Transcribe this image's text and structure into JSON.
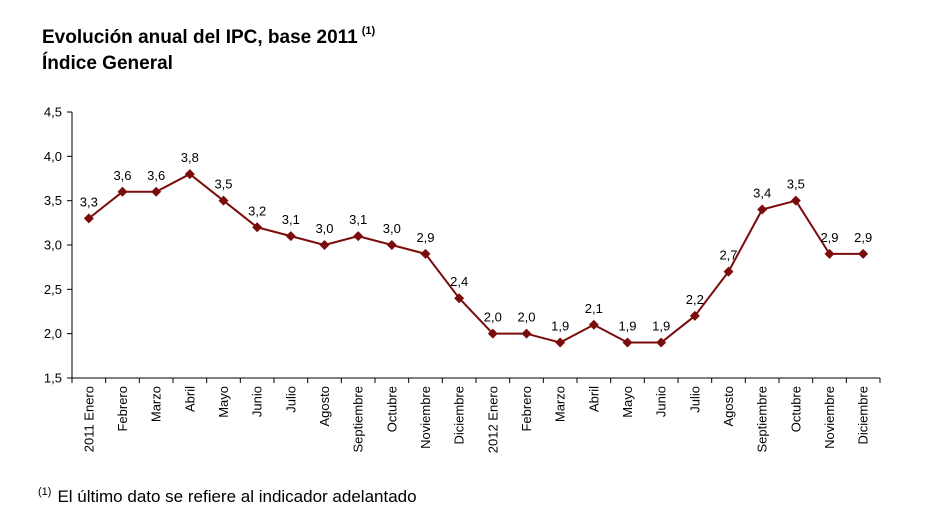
{
  "chart_data": {
    "type": "line",
    "title": "Evolución anual del IPC, base 2011",
    "title_superscript": "(1)",
    "subtitle": "Índice General",
    "xlabel": "",
    "ylabel": "",
    "ylim": [
      1.5,
      4.5
    ],
    "yticks": [
      "1,5",
      "2,0",
      "2,5",
      "3,0",
      "3,5",
      "4,0",
      "4,5"
    ],
    "categories": [
      "2011 Enero",
      "Febrero",
      "Marzo",
      "Abril",
      "Mayo",
      "Junio",
      "Julio",
      "Agosto",
      "Septiembre",
      "Octubre",
      "Noviembre",
      "Diciembre",
      "2012 Enero",
      "Febrero",
      "Marzo",
      "Abril",
      "Mayo",
      "Junio",
      "Julio",
      "Agosto",
      "Septiembre",
      "Octubre",
      "Noviembre",
      "Diciembre"
    ],
    "series": [
      {
        "values": [
          3.3,
          3.6,
          3.6,
          3.8,
          3.5,
          3.2,
          3.1,
          3.0,
          3.1,
          3.0,
          2.9,
          2.4,
          2.0,
          2.0,
          1.9,
          2.1,
          1.9,
          1.9,
          2.2,
          2.7,
          3.4,
          3.5,
          2.9,
          2.9
        ],
        "labels": [
          "3,3",
          "3,6",
          "3,6",
          "3,8",
          "3,5",
          "3,2",
          "3,1",
          "3,0",
          "3,1",
          "3,0",
          "2,9",
          "2,4",
          "2,0",
          "2,0",
          "1,9",
          "2,1",
          "1,9",
          "1,9",
          "2,2",
          "2,7",
          "3,4",
          "3,5",
          "2,9",
          "2,9"
        ],
        "color": "#7b0c0c"
      }
    ],
    "grid": false,
    "legend": "none"
  },
  "footnote": {
    "marker": "(1)",
    "text": "El último dato se refiere al indicador adelantado"
  }
}
